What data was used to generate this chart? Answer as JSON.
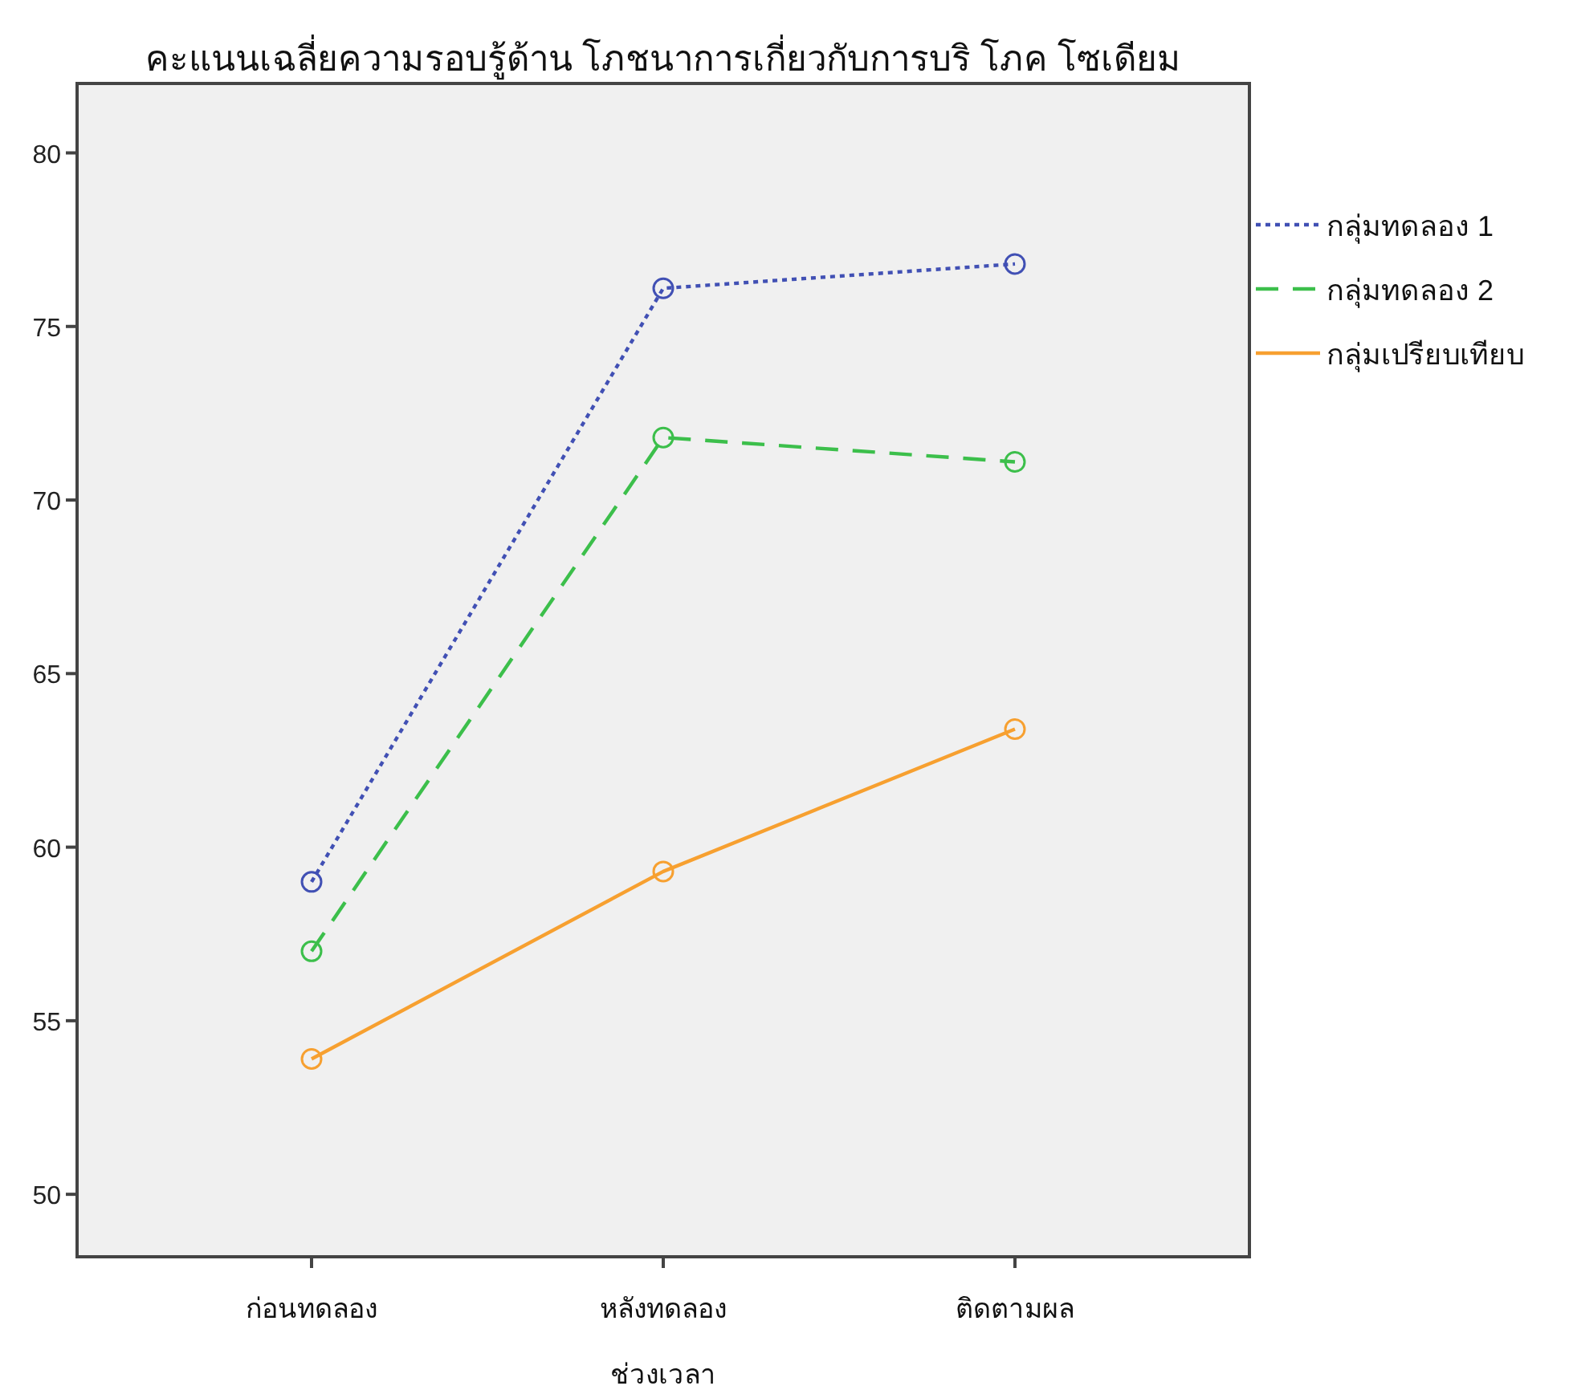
{
  "chart_data": {
    "type": "line",
    "title": "คะแนนเฉลี่ยความรอบรู้ด้าน โภชนาการเกี่ยวกับการบริ โภค โซเดียม",
    "xlabel": "ช่วงเวลา",
    "categories": [
      "ก่อนทดลอง",
      "หลังทดลอง",
      "ติดตามผล"
    ],
    "series": [
      {
        "name": "กลุ่มทดลอง 1",
        "color": "#4150b4",
        "line_style": "dotted",
        "values": [
          59.0,
          76.1,
          76.8
        ]
      },
      {
        "name": "กลุ่มทดลอง 2",
        "color": "#3cbf4b",
        "line_style": "dashed",
        "values": [
          57.0,
          71.8,
          71.1
        ]
      },
      {
        "name": "กลุ่มเปรียบเทียบ",
        "color": "#f7a030",
        "line_style": "solid",
        "values": [
          53.9,
          59.3,
          63.4
        ]
      }
    ],
    "ylim": [
      48.2,
      82
    ],
    "yticks": [
      50,
      55,
      60,
      65,
      70,
      75,
      80
    ],
    "grid": false,
    "legend": "right",
    "marker": "circle"
  }
}
